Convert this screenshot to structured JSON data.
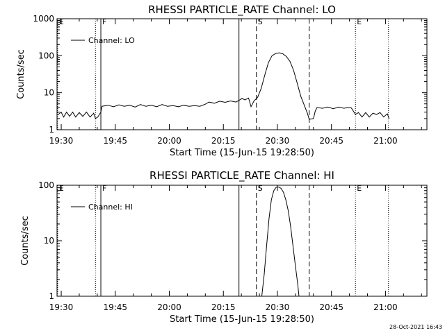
{
  "chart_data": [
    {
      "type": "line",
      "title": "RHESSI PARTICLE_RATE Channel: LO",
      "ylabel": "Counts/sec",
      "xlabel": "Start Time (15-Jun-15 19:28:50)",
      "legend": {
        "entry": "Channel: LO",
        "placement": "top-left"
      },
      "y_scale": "log",
      "ylim": [
        1,
        1000
      ],
      "y_ticks": [
        "1",
        "10",
        "100",
        "1000"
      ],
      "xlim": [
        "19:28:50",
        "21:11:30"
      ],
      "x_ticks": [
        {
          "label": "19:30",
          "t": "19:30"
        },
        {
          "label": "19:45",
          "t": "19:45"
        },
        {
          "label": "20:00",
          "t": "20:00"
        },
        {
          "label": "20:15",
          "t": "20:15"
        },
        {
          "label": "20:30",
          "t": "20:30"
        },
        {
          "label": "20:45",
          "t": "20:45"
        },
        {
          "label": "21:00",
          "t": "21:00"
        }
      ],
      "markers": [
        {
          "label": "E",
          "t": "19:29:00",
          "style": "dotted"
        },
        {
          "label": "",
          "t": "19:39:30",
          "style": "dotted"
        },
        {
          "label": "F",
          "t": "19:41:00",
          "style": "solid"
        },
        {
          "label": "",
          "t": "20:19:20",
          "style": "solid"
        },
        {
          "label": "S",
          "t": "20:24:10",
          "style": "dashed"
        },
        {
          "label": "",
          "t": "20:38:50",
          "style": "dashed"
        },
        {
          "label": "E",
          "t": "20:51:40",
          "style": "dotted"
        },
        {
          "label": "",
          "t": "21:00:50",
          "style": "dotted"
        }
      ],
      "series": [
        {
          "name": "Channel: LO",
          "points": [
            [
              "19:29:00",
              2.5
            ],
            [
              "19:30:00",
              3.0
            ],
            [
              "19:30:40",
              2.2
            ],
            [
              "19:31:30",
              3.0
            ],
            [
              "19:32:20",
              2.3
            ],
            [
              "19:33:10",
              3.0
            ],
            [
              "19:34:00",
              2.2
            ],
            [
              "19:35:00",
              2.9
            ],
            [
              "19:36:00",
              2.3
            ],
            [
              "19:37:00",
              3.0
            ],
            [
              "19:38:00",
              2.2
            ],
            [
              "19:39:00",
              2.8
            ],
            [
              "19:39:30",
              2.0
            ],
            [
              "19:40:10",
              2.2
            ],
            [
              "19:41:00",
              3.0
            ],
            [
              "19:41:20",
              4.3
            ],
            [
              "19:43:00",
              4.6
            ],
            [
              "19:44:30",
              4.2
            ],
            [
              "19:46:00",
              4.7
            ],
            [
              "19:47:30",
              4.3
            ],
            [
              "19:49:00",
              4.6
            ],
            [
              "19:50:30",
              4.1
            ],
            [
              "19:52:00",
              4.8
            ],
            [
              "19:53:30",
              4.3
            ],
            [
              "19:55:00",
              4.6
            ],
            [
              "19:56:30",
              4.2
            ],
            [
              "19:58:00",
              4.8
            ],
            [
              "19:59:30",
              4.3
            ],
            [
              "20:01:00",
              4.5
            ],
            [
              "20:02:30",
              4.2
            ],
            [
              "20:04:00",
              4.6
            ],
            [
              "20:05:30",
              4.3
            ],
            [
              "20:07:00",
              4.5
            ],
            [
              "20:08:30",
              4.3
            ],
            [
              "20:10:00",
              4.9
            ],
            [
              "20:11:00",
              5.6
            ],
            [
              "20:12:30",
              5.2
            ],
            [
              "20:14:00",
              5.9
            ],
            [
              "20:15:30",
              5.5
            ],
            [
              "20:17:00",
              6.0
            ],
            [
              "20:18:30",
              5.6
            ],
            [
              "20:19:20",
              6.2
            ],
            [
              "20:20:10",
              7.0
            ],
            [
              "20:21:00",
              6.4
            ],
            [
              "20:22:00",
              7.2
            ],
            [
              "20:22:40",
              4.2
            ],
            [
              "20:23:30",
              6.0
            ],
            [
              "20:24:30",
              7.5
            ],
            [
              "20:25:30",
              13.0
            ],
            [
              "20:26:30",
              30.0
            ],
            [
              "20:27:30",
              65.0
            ],
            [
              "20:28:30",
              100.0
            ],
            [
              "20:29:30",
              115.0
            ],
            [
              "20:30:30",
              120.0
            ],
            [
              "20:31:30",
              113.0
            ],
            [
              "20:32:30",
              95.0
            ],
            [
              "20:33:30",
              70.0
            ],
            [
              "20:34:30",
              40.0
            ],
            [
              "20:35:30",
              18.0
            ],
            [
              "20:36:30",
              8.0
            ],
            [
              "20:37:30",
              4.5
            ],
            [
              "20:38:20",
              2.8
            ],
            [
              "20:38:50",
              1.9
            ],
            [
              "20:40:00",
              2.0
            ],
            [
              "20:40:30",
              3.2
            ],
            [
              "20:41:00",
              4.0
            ],
            [
              "20:42:30",
              3.8
            ],
            [
              "20:44:00",
              4.1
            ],
            [
              "20:45:30",
              3.7
            ],
            [
              "20:47:00",
              4.1
            ],
            [
              "20:48:30",
              3.8
            ],
            [
              "20:49:30",
              4.0
            ],
            [
              "20:50:30",
              3.9
            ],
            [
              "20:51:40",
              2.6
            ],
            [
              "20:52:30",
              2.9
            ],
            [
              "20:53:30",
              2.2
            ],
            [
              "20:54:30",
              2.9
            ],
            [
              "20:55:30",
              2.2
            ],
            [
              "20:56:30",
              2.8
            ],
            [
              "20:57:30",
              2.6
            ],
            [
              "20:58:30",
              2.9
            ],
            [
              "20:59:30",
              2.2
            ],
            [
              "21:00:30",
              2.7
            ],
            [
              "21:01:00",
              2.0
            ]
          ]
        }
      ]
    },
    {
      "type": "line",
      "title": "RHESSI PARTICLE_RATE Channel: HI",
      "ylabel": "Counts/sec",
      "xlabel": "Start Time (15-Jun-15 19:28:50)",
      "legend": {
        "entry": "Channel: HI",
        "placement": "top-left"
      },
      "y_scale": "log",
      "ylim": [
        1,
        100
      ],
      "y_ticks": [
        "1",
        "10",
        "100"
      ],
      "xlim": [
        "19:28:50",
        "21:11:30"
      ],
      "x_ticks": [
        {
          "label": "19:30",
          "t": "19:30"
        },
        {
          "label": "19:45",
          "t": "19:45"
        },
        {
          "label": "20:00",
          "t": "20:00"
        },
        {
          "label": "20:15",
          "t": "20:15"
        },
        {
          "label": "20:30",
          "t": "20:30"
        },
        {
          "label": "20:45",
          "t": "20:45"
        },
        {
          "label": "21:00",
          "t": "21:00"
        }
      ],
      "markers": [
        {
          "label": "E",
          "t": "19:29:00",
          "style": "dotted"
        },
        {
          "label": "",
          "t": "19:39:30",
          "style": "dotted"
        },
        {
          "label": "F",
          "t": "19:41:00",
          "style": "solid"
        },
        {
          "label": "",
          "t": "20:19:20",
          "style": "solid"
        },
        {
          "label": "S",
          "t": "20:24:10",
          "style": "dashed"
        },
        {
          "label": "",
          "t": "20:38:50",
          "style": "dashed"
        },
        {
          "label": "E",
          "t": "20:51:40",
          "style": "dotted"
        },
        {
          "label": "",
          "t": "21:00:50",
          "style": "dotted"
        }
      ],
      "series": [
        {
          "name": "Channel: HI",
          "points": [
            [
              "20:25:40",
              1.0
            ],
            [
              "20:26:20",
              2.5
            ],
            [
              "20:27:00",
              8.0
            ],
            [
              "20:27:40",
              25.0
            ],
            [
              "20:28:20",
              55.0
            ],
            [
              "20:29:00",
              80.0
            ],
            [
              "20:29:40",
              92.0
            ],
            [
              "20:30:20",
              93.0
            ],
            [
              "20:31:00",
              88.0
            ],
            [
              "20:31:40",
              75.0
            ],
            [
              "20:32:20",
              55.0
            ],
            [
              "20:33:00",
              35.0
            ],
            [
              "20:33:40",
              18.0
            ],
            [
              "20:34:20",
              8.0
            ],
            [
              "20:35:00",
              3.5
            ],
            [
              "20:35:40",
              1.6
            ],
            [
              "20:36:00",
              1.0
            ]
          ]
        }
      ]
    }
  ],
  "footer": {
    "timestamp": "28-Oct-2021 16:43"
  }
}
